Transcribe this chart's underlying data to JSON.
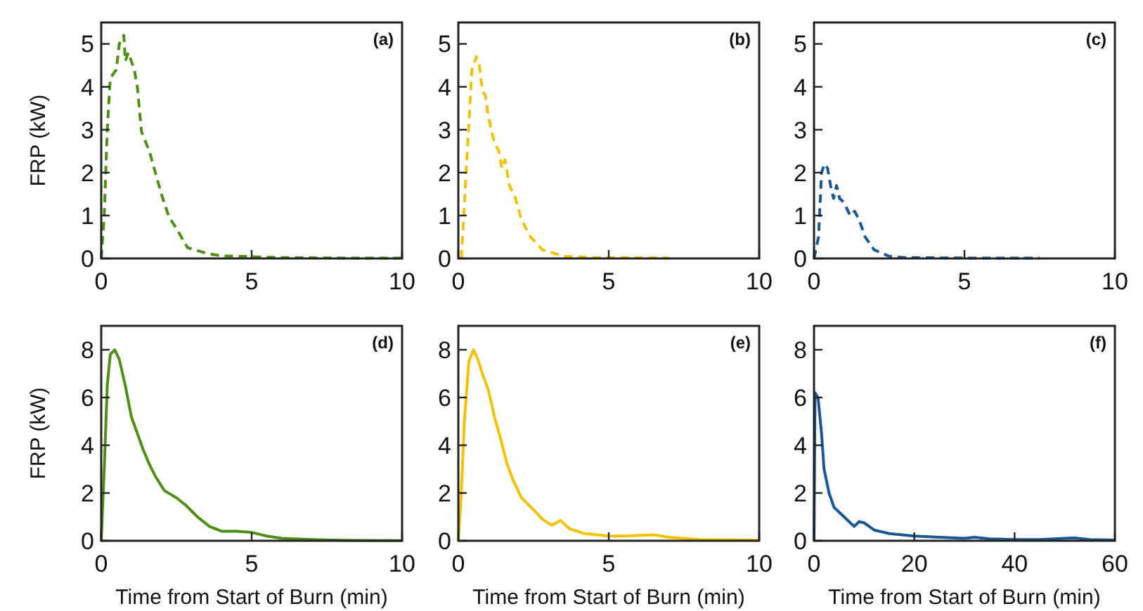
{
  "chart_data": [
    {
      "type": "line",
      "title": "(a)",
      "ylabel": "FRP (kW)",
      "xlim": [
        0,
        10
      ],
      "xticks": [
        0,
        5,
        10
      ],
      "ylim": [
        0,
        5.5
      ],
      "yticks": [
        0,
        1,
        2,
        3,
        4,
        5
      ],
      "line_style": "dashed",
      "series": [
        {
          "color": "#4f8f16",
          "x": [
            0,
            0.1,
            0.2,
            0.3,
            0.5,
            0.6,
            0.75,
            0.8,
            0.9,
            1.0,
            1.1,
            1.2,
            1.34,
            1.6,
            2.0,
            2.25,
            2.5,
            2.87,
            3.5,
            4,
            5,
            6,
            8,
            10
          ],
          "values": [
            0,
            1,
            3,
            4.2,
            4.4,
            5.0,
            5.2,
            4.6,
            4.8,
            4.6,
            4.4,
            4.0,
            2.95,
            2.5,
            1.5,
            0.97,
            0.7,
            0.25,
            0.12,
            0.06,
            0.04,
            0.02,
            0.01,
            0.01
          ]
        }
      ]
    },
    {
      "type": "line",
      "title": "(b)",
      "xlim": [
        0,
        10
      ],
      "xticks": [
        0,
        5,
        10
      ],
      "ylim": [
        0,
        5.5
      ],
      "yticks": [
        0,
        1,
        2,
        3,
        4,
        5
      ],
      "line_style": "dashed",
      "series": [
        {
          "color": "#f2c200",
          "x": [
            0.1,
            0.3,
            0.45,
            0.6,
            0.7,
            0.8,
            0.9,
            1.0,
            1.1,
            1.2,
            1.35,
            1.45,
            1.55,
            1.7,
            1.9,
            2.1,
            2.4,
            2.8,
            3.5,
            4.5,
            7
          ],
          "values": [
            0,
            2.5,
            4.4,
            4.7,
            4.5,
            3.9,
            3.8,
            3.3,
            3.0,
            2.7,
            2.5,
            2.1,
            2.3,
            1.7,
            1.4,
            0.9,
            0.5,
            0.2,
            0.05,
            0.02,
            0.01
          ]
        }
      ]
    },
    {
      "type": "line",
      "title": "(c)",
      "xlim": [
        0,
        10
      ],
      "xticks": [
        0,
        5,
        10
      ],
      "ylim": [
        0,
        5.5
      ],
      "yticks": [
        0,
        1,
        2,
        3,
        4,
        5
      ],
      "line_style": "dashed",
      "series": [
        {
          "color": "#1c5694",
          "x": [
            0,
            0.15,
            0.25,
            0.35,
            0.45,
            0.55,
            0.65,
            0.75,
            0.85,
            1.0,
            1.2,
            1.35,
            1.5,
            1.7,
            2.0,
            2.5,
            3,
            5,
            7.5
          ],
          "values": [
            0,
            0.5,
            2.0,
            2.2,
            2.1,
            1.7,
            1.4,
            1.7,
            1.4,
            1.3,
            1.0,
            1.1,
            0.9,
            0.5,
            0.2,
            0.05,
            0.02,
            0.01,
            0.01
          ]
        }
      ]
    },
    {
      "type": "line",
      "title": "(d)",
      "ylabel": "FRP (kW)",
      "xlabel": "Time from Start of Burn (min)",
      "xlim": [
        0,
        10
      ],
      "xticks": [
        0,
        5,
        10
      ],
      "ylim": [
        0,
        9
      ],
      "yticks": [
        0,
        2,
        4,
        6,
        8
      ],
      "line_style": "solid",
      "series": [
        {
          "color": "#4f8f16",
          "x": [
            0,
            0.1,
            0.2,
            0.3,
            0.45,
            0.6,
            0.8,
            1.0,
            1.2,
            1.4,
            1.6,
            1.8,
            2.1,
            2.5,
            2.8,
            3.2,
            3.6,
            4.0,
            4.5,
            5.0,
            5.5,
            6,
            7,
            8,
            10
          ],
          "values": [
            0,
            3,
            6.5,
            7.8,
            8.0,
            7.6,
            6.5,
            5.2,
            4.5,
            3.8,
            3.2,
            2.7,
            2.1,
            1.8,
            1.5,
            1.0,
            0.6,
            0.4,
            0.4,
            0.35,
            0.2,
            0.1,
            0.05,
            0.02,
            0.01
          ]
        }
      ]
    },
    {
      "type": "line",
      "title": "(e)",
      "xlabel": "Time from Start of Burn (min)",
      "xlim": [
        0,
        10
      ],
      "xticks": [
        0,
        5,
        10
      ],
      "ylim": [
        0,
        9
      ],
      "yticks": [
        0,
        2,
        4,
        6,
        8
      ],
      "line_style": "solid",
      "series": [
        {
          "color": "#f2c200",
          "x": [
            0,
            0.1,
            0.2,
            0.35,
            0.5,
            0.65,
            0.8,
            1.0,
            1.2,
            1.4,
            1.6,
            1.8,
            2.1,
            2.5,
            2.8,
            3.1,
            3.4,
            3.7,
            4.2,
            5,
            5.5,
            6.5,
            7,
            8,
            10
          ],
          "values": [
            0,
            2,
            5,
            7.5,
            8.0,
            7.6,
            7.0,
            6.3,
            5.2,
            4.3,
            3.3,
            2.6,
            1.8,
            1.3,
            0.9,
            0.65,
            0.85,
            0.5,
            0.3,
            0.2,
            0.2,
            0.25,
            0.15,
            0.05,
            0.02
          ]
        }
      ]
    },
    {
      "type": "line",
      "title": "(f)",
      "xlabel": "Time from Start of Burn (min)",
      "xlim": [
        0,
        60
      ],
      "xticks": [
        0,
        20,
        40,
        60
      ],
      "ylim": [
        0,
        9
      ],
      "yticks": [
        0,
        2,
        4,
        6,
        8
      ],
      "line_style": "solid",
      "series": [
        {
          "color": "#1c5694",
          "x": [
            0,
            0.2,
            0.8,
            1.5,
            2,
            3,
            4,
            5,
            7,
            8,
            9,
            10,
            12,
            15,
            20,
            25,
            30,
            32,
            35,
            40,
            45,
            50,
            52,
            55,
            60
          ],
          "values": [
            0,
            6.2,
            6,
            4.5,
            3,
            2,
            1.4,
            1.2,
            0.8,
            0.6,
            0.8,
            0.75,
            0.45,
            0.3,
            0.2,
            0.15,
            0.1,
            0.15,
            0.08,
            0.05,
            0.05,
            0.1,
            0.12,
            0.05,
            0.03
          ]
        }
      ]
    }
  ]
}
